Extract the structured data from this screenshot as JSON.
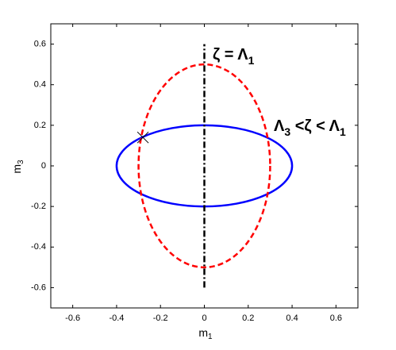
{
  "chart_data": {
    "type": "ellipses",
    "xlim": [
      -0.7,
      0.7
    ],
    "ylim": [
      -0.7,
      0.7
    ],
    "xticks": [
      -0.6,
      -0.4,
      -0.2,
      0,
      0.2,
      0.4,
      0.6
    ],
    "yticks": [
      -0.6,
      -0.4,
      -0.2,
      0,
      0.2,
      0.4,
      0.6
    ],
    "xlabel": {
      "text": "m",
      "sub": "1"
    },
    "ylabel": {
      "text": "m",
      "sub": "3"
    },
    "ellipses": [
      {
        "color": "#0000ff",
        "dashed": false,
        "cx": 0,
        "cy": 0,
        "rx": 0.4,
        "ry": 0.2
      },
      {
        "color": "#ff0000",
        "dashed": true,
        "cx": 0,
        "cy": 0,
        "rx": 0.3,
        "ry": 0.5
      }
    ],
    "vline": {
      "color": "#000000",
      "x": 0,
      "y": [
        -0.6,
        0.6
      ]
    },
    "marker": {
      "x": -0.28,
      "y": 0.14
    },
    "annotations": [
      {
        "text": "ζ  =  Λ",
        "sub": "1"
      },
      {
        "text": "Λ",
        "sub": "3",
        "text2": "  <ζ  <  Λ",
        "sub2": "1"
      }
    ]
  }
}
